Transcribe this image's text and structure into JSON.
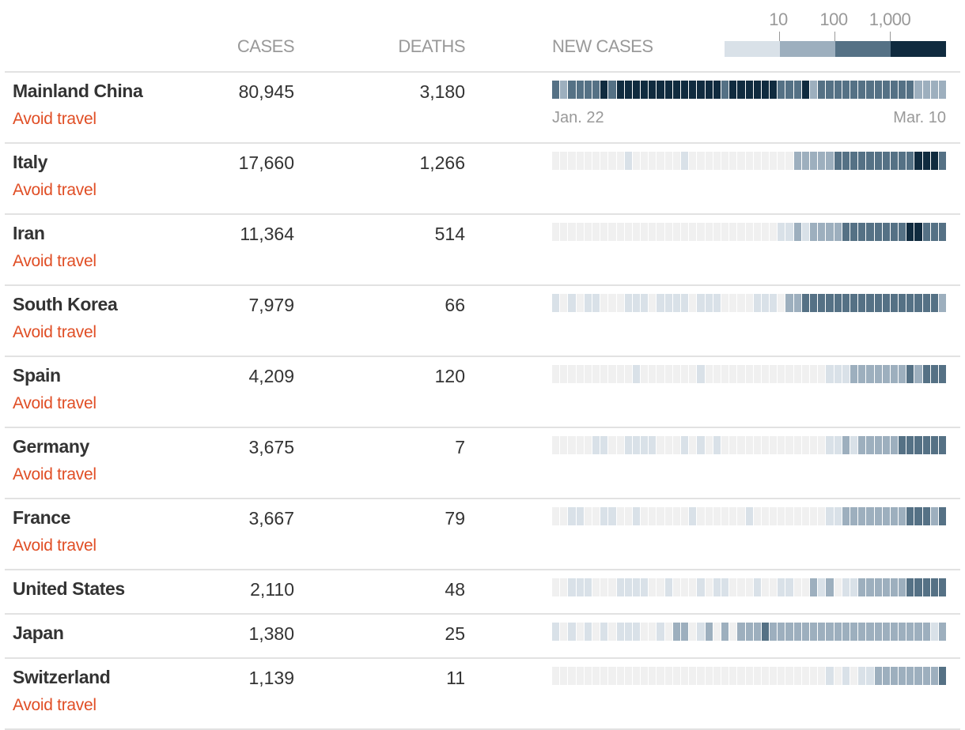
{
  "header": {
    "cases": "CASES",
    "deaths": "DEATHS",
    "new_cases": "NEW CASES"
  },
  "legend": {
    "labels": [
      "10",
      "100",
      "1,000"
    ]
  },
  "colors": {
    "levels": [
      "#f0f0f0",
      "#d9e1e8",
      "#9dafbe",
      "#557185",
      "#102b3f"
    ],
    "advisory": "#e04e25"
  },
  "dates": {
    "start": "Jan. 22",
    "end": "Mar. 10"
  },
  "chart_data": {
    "type": "heatmap",
    "title": "New cases",
    "x_range": [
      "Jan. 22",
      "Mar. 10"
    ],
    "legend_bins": [
      "<10",
      "10-100",
      "100-1,000",
      ">1,000"
    ],
    "level_meaning": "0 = none, 1 = under 10, 2 = 10-100, 3 = 100-1,000, 4 = over 1,000",
    "rows": [
      {
        "country": "Mainland China",
        "cases": "80,945",
        "deaths": "3,180",
        "advisory": "Avoid travel",
        "levels": [
          3,
          2,
          3,
          3,
          3,
          3,
          4,
          3,
          4,
          4,
          4,
          4,
          4,
          4,
          4,
          4,
          4,
          4,
          4,
          4,
          4,
          3,
          4,
          4,
          4,
          4,
          4,
          4,
          3,
          3,
          3,
          4,
          2,
          3,
          3,
          3,
          3,
          3,
          3,
          3,
          3,
          3,
          3,
          3,
          3,
          2,
          2,
          2,
          2
        ]
      },
      {
        "country": "Italy",
        "cases": "17,660",
        "deaths": "1,266",
        "advisory": "Avoid travel",
        "levels": [
          0,
          0,
          0,
          0,
          0,
          0,
          0,
          0,
          0,
          1,
          0,
          0,
          0,
          0,
          0,
          0,
          1,
          0,
          0,
          0,
          0,
          0,
          0,
          0,
          0,
          0,
          0,
          0,
          0,
          0,
          2,
          2,
          2,
          2,
          2,
          3,
          3,
          3,
          3,
          3,
          3,
          3,
          3,
          3,
          3,
          4,
          4,
          4,
          3
        ]
      },
      {
        "country": "Iran",
        "cases": "11,364",
        "deaths": "514",
        "advisory": "Avoid travel",
        "levels": [
          0,
          0,
          0,
          0,
          0,
          0,
          0,
          0,
          0,
          0,
          0,
          0,
          0,
          0,
          0,
          0,
          0,
          0,
          0,
          0,
          0,
          0,
          0,
          0,
          0,
          0,
          0,
          0,
          1,
          1,
          2,
          1,
          2,
          2,
          2,
          2,
          3,
          3,
          3,
          3,
          3,
          3,
          3,
          3,
          4,
          4,
          3,
          3,
          3
        ]
      },
      {
        "country": "South Korea",
        "cases": "7,979",
        "deaths": "66",
        "advisory": "Avoid travel",
        "levels": [
          1,
          0,
          1,
          0,
          1,
          1,
          0,
          0,
          0,
          1,
          1,
          1,
          0,
          1,
          1,
          1,
          1,
          0,
          1,
          1,
          1,
          0,
          0,
          0,
          0,
          1,
          1,
          1,
          0,
          2,
          2,
          3,
          3,
          3,
          3,
          3,
          3,
          3,
          3,
          3,
          3,
          3,
          3,
          3,
          3,
          3,
          3,
          3,
          2
        ]
      },
      {
        "country": "Spain",
        "cases": "4,209",
        "deaths": "120",
        "advisory": "Avoid travel",
        "levels": [
          0,
          0,
          0,
          0,
          0,
          0,
          0,
          0,
          0,
          0,
          1,
          0,
          0,
          0,
          0,
          0,
          0,
          0,
          1,
          0,
          0,
          0,
          0,
          0,
          0,
          0,
          0,
          0,
          0,
          0,
          0,
          0,
          0,
          0,
          1,
          1,
          1,
          2,
          2,
          2,
          2,
          2,
          2,
          2,
          3,
          2,
          3,
          3,
          3
        ]
      },
      {
        "country": "Germany",
        "cases": "3,675",
        "deaths": "7",
        "advisory": "Avoid travel",
        "levels": [
          0,
          0,
          0,
          0,
          0,
          1,
          1,
          0,
          0,
          1,
          1,
          1,
          1,
          0,
          0,
          0,
          1,
          0,
          1,
          0,
          1,
          0,
          0,
          0,
          0,
          0,
          0,
          0,
          0,
          0,
          0,
          0,
          0,
          0,
          1,
          1,
          2,
          1,
          2,
          2,
          2,
          2,
          2,
          3,
          3,
          3,
          3,
          3,
          3
        ]
      },
      {
        "country": "France",
        "cases": "3,667",
        "deaths": "79",
        "advisory": "Avoid travel",
        "levels": [
          0,
          0,
          1,
          1,
          0,
          0,
          1,
          1,
          0,
          0,
          1,
          0,
          0,
          0,
          0,
          0,
          0,
          1,
          0,
          0,
          0,
          0,
          0,
          0,
          1,
          0,
          0,
          0,
          0,
          0,
          0,
          0,
          0,
          0,
          1,
          1,
          2,
          2,
          2,
          2,
          2,
          2,
          2,
          2,
          3,
          3,
          3,
          2,
          3
        ]
      },
      {
        "country": "United States",
        "cases": "2,110",
        "deaths": "48",
        "advisory": "",
        "levels": [
          0,
          0,
          1,
          1,
          1,
          0,
          0,
          0,
          1,
          1,
          1,
          1,
          0,
          0,
          1,
          0,
          0,
          0,
          1,
          0,
          1,
          1,
          0,
          0,
          0,
          1,
          0,
          0,
          1,
          1,
          0,
          0,
          2,
          1,
          2,
          0,
          1,
          1,
          2,
          2,
          2,
          2,
          2,
          2,
          3,
          3,
          3,
          3,
          3
        ]
      },
      {
        "country": "Japan",
        "cases": "1,380",
        "deaths": "25",
        "advisory": "",
        "levels": [
          1,
          0,
          1,
          0,
          1,
          0,
          1,
          0,
          1,
          1,
          1,
          0,
          0,
          1,
          0,
          2,
          2,
          0,
          1,
          2,
          0,
          2,
          0,
          2,
          2,
          2,
          3,
          2,
          2,
          2,
          2,
          2,
          2,
          2,
          2,
          2,
          2,
          2,
          2,
          2,
          2,
          2,
          2,
          2,
          2,
          2,
          2,
          1,
          2
        ]
      },
      {
        "country": "Switzerland",
        "cases": "1,139",
        "deaths": "11",
        "advisory": "Avoid travel",
        "levels": [
          0,
          0,
          0,
          0,
          0,
          0,
          0,
          0,
          0,
          0,
          0,
          0,
          0,
          0,
          0,
          0,
          0,
          0,
          0,
          0,
          0,
          0,
          0,
          0,
          0,
          0,
          0,
          0,
          0,
          0,
          0,
          0,
          0,
          0,
          1,
          0,
          1,
          0,
          1,
          1,
          2,
          2,
          2,
          2,
          2,
          2,
          2,
          2,
          3
        ]
      }
    ]
  }
}
